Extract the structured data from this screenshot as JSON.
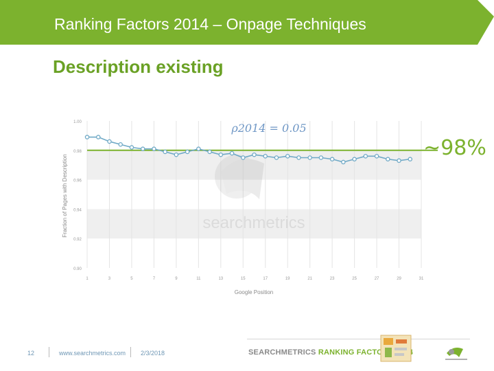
{
  "header": {
    "title": "Ranking Factors 2014 – Onpage Techniques"
  },
  "subtitle": "Description existing",
  "annotation": "~98%",
  "chart_data": {
    "type": "line",
    "ylabel": "Fraction of Pages with Description",
    "xlabel": "Google Position",
    "rho_label": "ρ2014 = 0.05",
    "watermark": "searchmetrics",
    "ylim": [
      0.9,
      1.0
    ],
    "y_ticks": [
      "1.00",
      "0.98",
      "0.96",
      "0.94",
      "0.92",
      "0.90"
    ],
    "xlim": [
      1,
      31
    ],
    "x_ticks": [
      "1",
      "3",
      "5",
      "7",
      "9",
      "11",
      "13",
      "15",
      "17",
      "19",
      "21",
      "23",
      "25",
      "27",
      "29",
      "31"
    ],
    "x": [
      1,
      2,
      3,
      4,
      5,
      6,
      7,
      8,
      9,
      10,
      11,
      12,
      13,
      14,
      15,
      16,
      17,
      18,
      19,
      20,
      21,
      22,
      23,
      24,
      25,
      26,
      27,
      28,
      29,
      30
    ],
    "values": [
      0.989,
      0.989,
      0.986,
      0.984,
      0.982,
      0.981,
      0.981,
      0.979,
      0.977,
      0.979,
      0.981,
      0.979,
      0.977,
      0.978,
      0.975,
      0.977,
      0.976,
      0.975,
      0.976,
      0.975,
      0.975,
      0.975,
      0.974,
      0.972,
      0.974,
      0.976,
      0.976,
      0.974,
      0.973,
      0.974
    ],
    "reference_line": 0.98,
    "colors": {
      "series": "#6fa9c6",
      "reference": "#7cb22e",
      "band": "#efefef",
      "grid": "#e4e4e4",
      "tick": "#9a9a9a"
    }
  },
  "footer": {
    "page_number": "12",
    "url": "www.searchmetrics.com",
    "date": "2/3/2018",
    "brand_part1": "SEARCHMETRICS",
    "brand_part2": " RANKING FACTORS 2014"
  }
}
